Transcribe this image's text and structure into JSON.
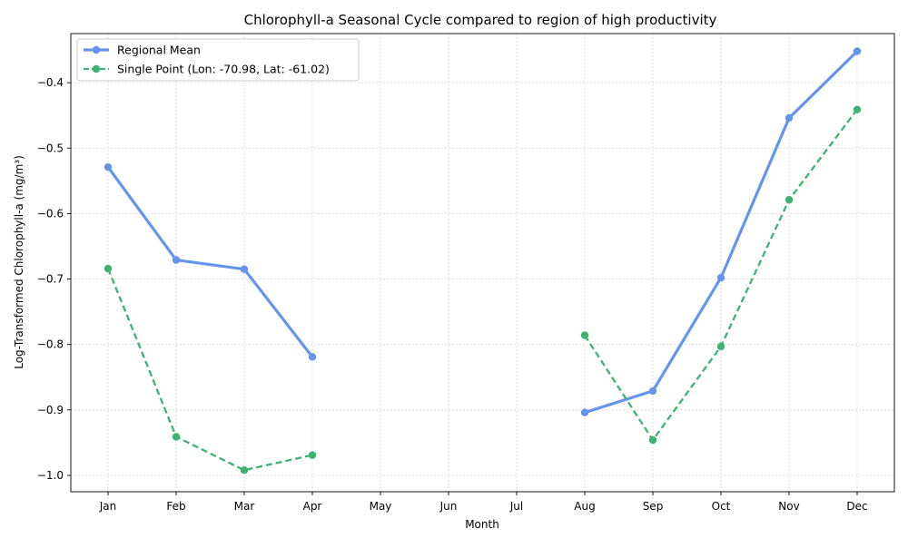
{
  "chart_data": {
    "type": "line",
    "title": "Chlorophyll-a Seasonal Cycle compared to region of high productivity",
    "xlabel": "Month",
    "ylabel": "Log-Transformed Chlorophyll-a (mg/m³)",
    "categories": [
      "Jan",
      "Feb",
      "Mar",
      "Apr",
      "May",
      "Jun",
      "Jul",
      "Aug",
      "Sep",
      "Oct",
      "Nov",
      "Dec"
    ],
    "ylim": [
      -1.025,
      -0.325
    ],
    "yticks": [
      -1.0,
      -0.9,
      -0.8,
      -0.7,
      -0.6,
      -0.5,
      -0.4
    ],
    "ytick_labels": [
      "−1.0",
      "−0.9",
      "−0.8",
      "−0.7",
      "−0.6",
      "−0.5",
      "−0.4"
    ],
    "grid": true,
    "legend_position": "top-left",
    "series": [
      {
        "name": "Regional Mean",
        "color": "#6495ED",
        "style": "solid",
        "marker": "circle",
        "values": [
          -0.529,
          -0.671,
          -0.685,
          -0.819,
          null,
          null,
          null,
          -0.904,
          -0.871,
          -0.698,
          -0.454,
          -0.352
        ]
      },
      {
        "name": "Single Point (Lon: -70.98, Lat: -61.02)",
        "color": "#3CB371",
        "style": "dashed",
        "marker": "circle",
        "values": [
          -0.684,
          -0.941,
          -0.992,
          -0.969,
          null,
          null,
          null,
          -0.786,
          -0.946,
          -0.803,
          -0.579,
          -0.441
        ]
      }
    ]
  }
}
